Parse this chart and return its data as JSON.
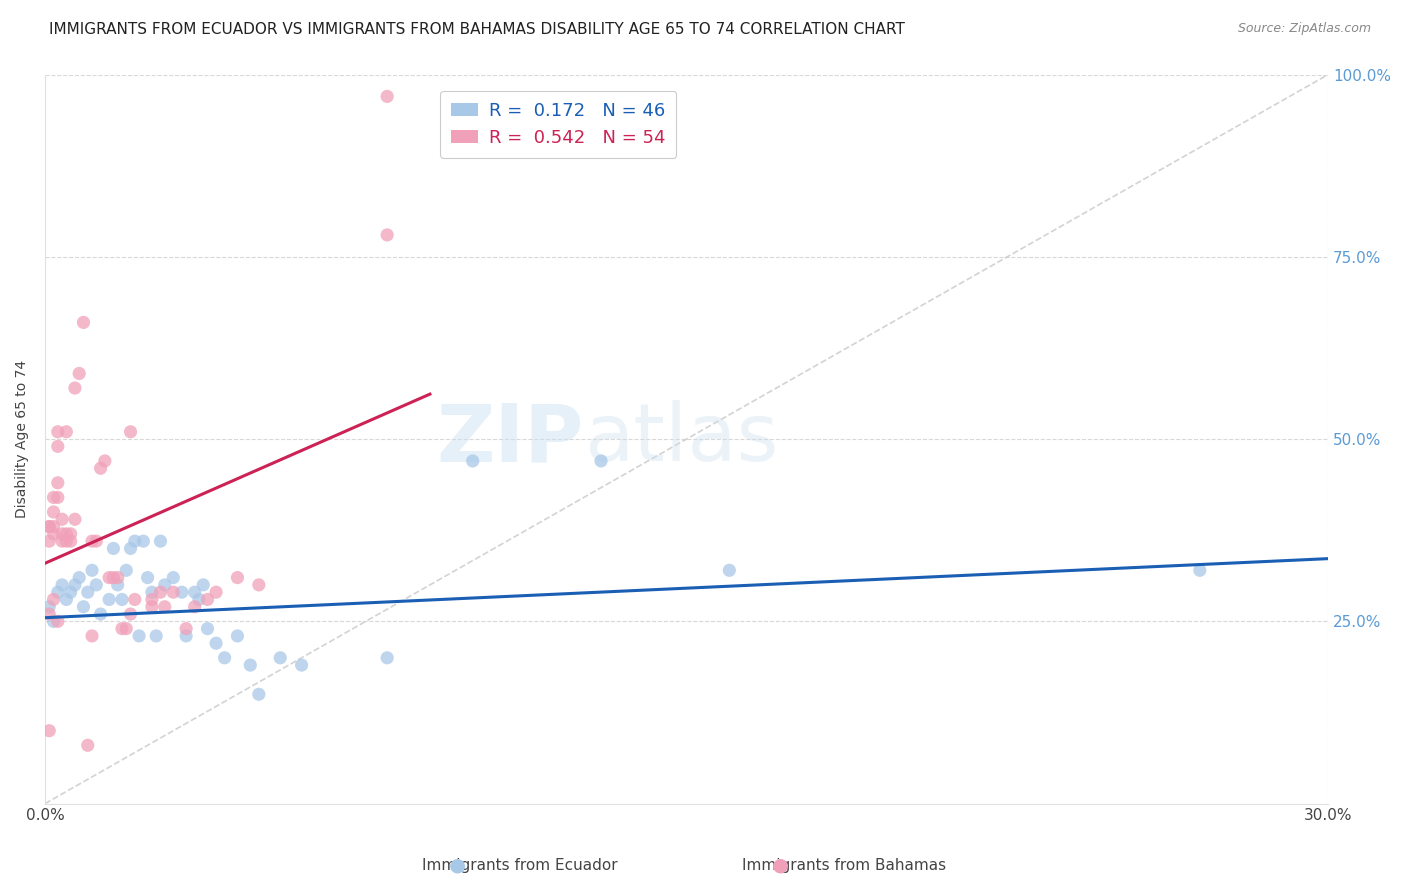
{
  "title": "IMMIGRANTS FROM ECUADOR VS IMMIGRANTS FROM BAHAMAS DISABILITY AGE 65 TO 74 CORRELATION CHART",
  "source": "Source: ZipAtlas.com",
  "ylabel": "Disability Age 65 to 74",
  "xmin": 0.0,
  "xmax": 0.3,
  "ymin": 0.0,
  "ymax": 1.0,
  "ecuador_color": "#a8c8e8",
  "bahamas_color": "#f0a0b8",
  "ecuador_line_color": "#1a5fb4",
  "bahamas_line_color": "#cc2255",
  "diag_line_color": "#c8c8c8",
  "watermark_color": "#ddeef8",
  "title_fontsize": 11,
  "axis_label_fontsize": 10,
  "tick_fontsize": 11,
  "legend_fontsize": 13,
  "right_tick_color": "#5b9bd5",
  "ecuador_R": 0.172,
  "ecuador_N": 46,
  "bahamas_R": 0.542,
  "bahamas_N": 54,
  "ecuador_intercept": 0.255,
  "ecuador_slope": 0.27,
  "bahamas_intercept": 0.22,
  "bahamas_slope": 3.8,
  "ecuador_points": [
    [
      0.001,
      0.27
    ],
    [
      0.002,
      0.25
    ],
    [
      0.003,
      0.29
    ],
    [
      0.004,
      0.3
    ],
    [
      0.005,
      0.28
    ],
    [
      0.006,
      0.29
    ],
    [
      0.007,
      0.3
    ],
    [
      0.008,
      0.31
    ],
    [
      0.009,
      0.27
    ],
    [
      0.01,
      0.29
    ],
    [
      0.011,
      0.32
    ],
    [
      0.012,
      0.3
    ],
    [
      0.013,
      0.26
    ],
    [
      0.015,
      0.28
    ],
    [
      0.016,
      0.35
    ],
    [
      0.017,
      0.3
    ],
    [
      0.018,
      0.28
    ],
    [
      0.019,
      0.32
    ],
    [
      0.02,
      0.35
    ],
    [
      0.021,
      0.36
    ],
    [
      0.022,
      0.23
    ],
    [
      0.023,
      0.36
    ],
    [
      0.024,
      0.31
    ],
    [
      0.025,
      0.29
    ],
    [
      0.026,
      0.23
    ],
    [
      0.027,
      0.36
    ],
    [
      0.028,
      0.3
    ],
    [
      0.03,
      0.31
    ],
    [
      0.032,
      0.29
    ],
    [
      0.033,
      0.23
    ],
    [
      0.035,
      0.29
    ],
    [
      0.036,
      0.28
    ],
    [
      0.037,
      0.3
    ],
    [
      0.038,
      0.24
    ],
    [
      0.04,
      0.22
    ],
    [
      0.042,
      0.2
    ],
    [
      0.045,
      0.23
    ],
    [
      0.048,
      0.19
    ],
    [
      0.05,
      0.15
    ],
    [
      0.055,
      0.2
    ],
    [
      0.06,
      0.19
    ],
    [
      0.08,
      0.2
    ],
    [
      0.1,
      0.47
    ],
    [
      0.13,
      0.47
    ],
    [
      0.16,
      0.32
    ],
    [
      0.27,
      0.32
    ]
  ],
  "bahamas_points": [
    [
      0.001,
      0.1
    ],
    [
      0.001,
      0.26
    ],
    [
      0.001,
      0.36
    ],
    [
      0.001,
      0.38
    ],
    [
      0.001,
      0.38
    ],
    [
      0.002,
      0.28
    ],
    [
      0.002,
      0.37
    ],
    [
      0.002,
      0.38
    ],
    [
      0.002,
      0.4
    ],
    [
      0.002,
      0.42
    ],
    [
      0.003,
      0.25
    ],
    [
      0.003,
      0.42
    ],
    [
      0.003,
      0.44
    ],
    [
      0.003,
      0.49
    ],
    [
      0.003,
      0.51
    ],
    [
      0.004,
      0.36
    ],
    [
      0.004,
      0.37
    ],
    [
      0.004,
      0.39
    ],
    [
      0.005,
      0.36
    ],
    [
      0.005,
      0.37
    ],
    [
      0.005,
      0.51
    ],
    [
      0.006,
      0.36
    ],
    [
      0.006,
      0.37
    ],
    [
      0.007,
      0.39
    ],
    [
      0.007,
      0.57
    ],
    [
      0.008,
      0.59
    ],
    [
      0.009,
      0.66
    ],
    [
      0.01,
      0.08
    ],
    [
      0.011,
      0.23
    ],
    [
      0.011,
      0.36
    ],
    [
      0.012,
      0.36
    ],
    [
      0.013,
      0.46
    ],
    [
      0.014,
      0.47
    ],
    [
      0.015,
      0.31
    ],
    [
      0.016,
      0.31
    ],
    [
      0.017,
      0.31
    ],
    [
      0.018,
      0.24
    ],
    [
      0.019,
      0.24
    ],
    [
      0.02,
      0.26
    ],
    [
      0.02,
      0.51
    ],
    [
      0.021,
      0.28
    ],
    [
      0.025,
      0.27
    ],
    [
      0.025,
      0.28
    ],
    [
      0.027,
      0.29
    ],
    [
      0.028,
      0.27
    ],
    [
      0.03,
      0.29
    ],
    [
      0.033,
      0.24
    ],
    [
      0.035,
      0.27
    ],
    [
      0.038,
      0.28
    ],
    [
      0.04,
      0.29
    ],
    [
      0.045,
      0.31
    ],
    [
      0.05,
      0.3
    ],
    [
      0.08,
      0.97
    ],
    [
      0.08,
      0.78
    ]
  ]
}
